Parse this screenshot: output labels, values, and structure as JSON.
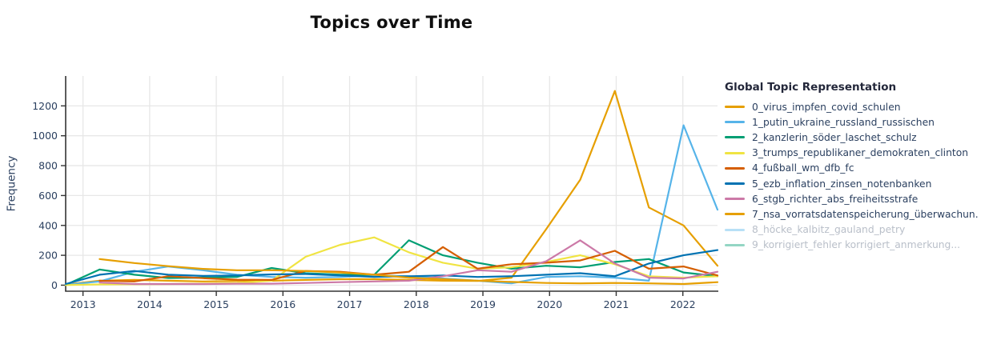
{
  "title": "Topics over Time",
  "y_axis": {
    "label": "Frequency",
    "ticks": [
      0,
      200,
      400,
      600,
      800,
      1000,
      1200
    ]
  },
  "x_axis": {
    "ticks": [
      2013,
      2014,
      2015,
      2016,
      2017,
      2018,
      2019,
      2020,
      2021,
      2022
    ]
  },
  "legend": {
    "title": "Global Topic Representation",
    "items": [
      {
        "label": "0_virus_impfen_covid_schulen",
        "color": "#E69F00",
        "active": true
      },
      {
        "label": "1_putin_ukraine_russland_russischen",
        "color": "#56B4E9",
        "active": true
      },
      {
        "label": "2_kanzlerin_söder_laschet_schulz",
        "color": "#009E73",
        "active": true
      },
      {
        "label": "3_trumps_republikaner_demokraten_clinton",
        "color": "#F0E442",
        "active": true
      },
      {
        "label": "4_fußball_wm_dfb_fc",
        "color": "#D55E00",
        "active": true
      },
      {
        "label": "5_ezb_inflation_zinsen_notenbanken",
        "color": "#0072B2",
        "active": true
      },
      {
        "label": "6_stgb_richter_abs_freiheitsstrafe",
        "color": "#CC79A7",
        "active": true
      },
      {
        "label": "7_nsa_vorratsdatenspeicherung_überwachun.",
        "color": "#E69F00",
        "active": true
      },
      {
        "label": "8_höcke_kalbitz_gauland_petry",
        "color": "#56B4E9",
        "active": false
      },
      {
        "label": "9_korrigiert_fehler korrigiert_anmerkung...",
        "color": "#009E73",
        "active": false
      }
    ]
  },
  "chart_data": {
    "type": "line",
    "title": "Topics over Time",
    "xlabel": "",
    "ylabel": "Frequency",
    "xlim": [
      2012.74,
      2022.52
    ],
    "ylim": [
      -35,
      1400
    ],
    "grid": true,
    "legend_position": "right",
    "x": [
      2012.74,
      2013.25,
      2013.77,
      2014.28,
      2014.8,
      2015.31,
      2015.83,
      2016.34,
      2016.86,
      2017.37,
      2017.89,
      2018.4,
      2018.92,
      2019.43,
      2019.95,
      2020.46,
      2020.98,
      2021.49,
      2022.01,
      2022.52
    ],
    "series": [
      {
        "name": "0_virus_impfen_covid_schulen",
        "color": "#E69F00",
        "visible": true,
        "values": [
          4,
          30,
          35,
          30,
          25,
          28,
          30,
          35,
          40,
          40,
          35,
          30,
          28,
          50,
          375,
          705,
          1300,
          520,
          400,
          130
        ]
      },
      {
        "name": "1_putin_ukraine_russland_russischen",
        "color": "#56B4E9",
        "visible": true,
        "values": [
          2,
          25,
          90,
          125,
          100,
          70,
          55,
          50,
          55,
          65,
          60,
          45,
          30,
          12,
          55,
          60,
          50,
          30,
          1070,
          505
        ]
      },
      {
        "name": "2_kanzlerin_söder_laschet_schulz",
        "color": "#009E73",
        "visible": true,
        "values": [
          2,
          105,
          70,
          48,
          50,
          55,
          115,
          80,
          70,
          70,
          300,
          200,
          150,
          110,
          130,
          120,
          155,
          175,
          85,
          60
        ]
      },
      {
        "name": "3_trumps_republikaner_demokraten_clinton",
        "color": "#F0E442",
        "visible": true,
        "values": [
          1,
          5,
          6,
          8,
          10,
          15,
          30,
          190,
          270,
          320,
          220,
          150,
          110,
          120,
          155,
          200,
          140,
          60,
          50,
          60
        ]
      },
      {
        "name": "4_fußball_wm_dfb_fc",
        "color": "#D55E00",
        "visible": true,
        "values": [
          null,
          30,
          25,
          60,
          47,
          37,
          35,
          95,
          90,
          70,
          90,
          255,
          110,
          140,
          150,
          165,
          230,
          110,
          125,
          65
        ]
      },
      {
        "name": "5_ezb_inflation_zinsen_notenbanken",
        "color": "#0072B2",
        "visible": true,
        "values": [
          8,
          70,
          95,
          70,
          62,
          65,
          72,
          75,
          65,
          55,
          60,
          65,
          55,
          60,
          70,
          80,
          60,
          145,
          200,
          235
        ]
      },
      {
        "name": "6_stgb_richter_abs_freiheitsstrafe",
        "color": "#CC79A7",
        "visible": true,
        "values": [
          null,
          18,
          8,
          8,
          8,
          10,
          10,
          15,
          20,
          25,
          30,
          60,
          100,
          90,
          160,
          300,
          145,
          50,
          45,
          90
        ]
      },
      {
        "name": "7_nsa_vorratsdatenspeicherung_überwachun.",
        "color": "#E69F00",
        "visible": true,
        "values": [
          null,
          175,
          148,
          127,
          109,
          100,
          100,
          95,
          85,
          70,
          50,
          40,
          30,
          22,
          15,
          12,
          15,
          12,
          8,
          20
        ]
      },
      {
        "name": "8_höcke_kalbitz_gauland_petry",
        "color": "#56B4E9",
        "visible": false,
        "values": null
      },
      {
        "name": "9_korrigiert_fehler korrigiert_anmerkung...",
        "color": "#009E73",
        "visible": false,
        "values": null
      }
    ]
  },
  "style": {
    "grid_color": "#e7e7e7",
    "axis_color": "#333333",
    "tick_label_color": "#2a3f5f",
    "title_color": "#0f0f0f"
  }
}
